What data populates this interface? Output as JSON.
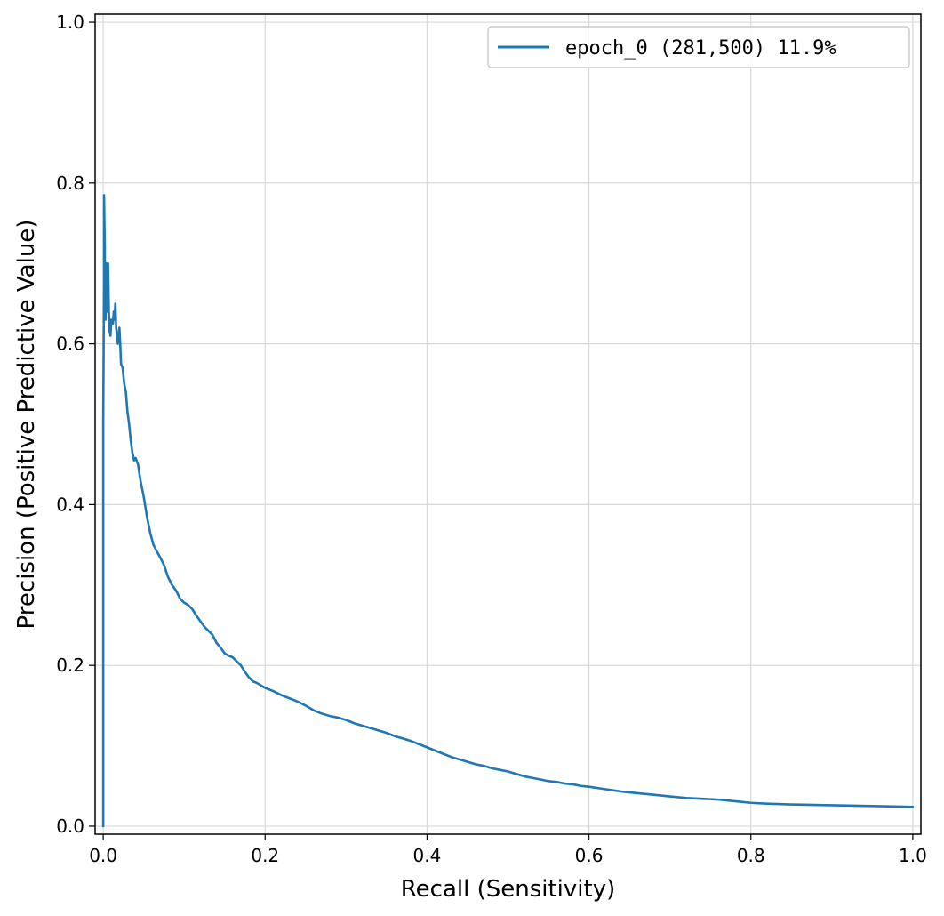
{
  "chart_data": {
    "type": "line",
    "title": "",
    "xlabel": "Recall (Sensitivity)",
    "ylabel": "Precision (Positive Predictive Value)",
    "xlim": [
      -0.01,
      1.01
    ],
    "ylim": [
      -0.01,
      1.01
    ],
    "x_ticks": [
      0.0,
      0.2,
      0.4,
      0.6,
      0.8,
      1.0
    ],
    "y_ticks": [
      0.0,
      0.2,
      0.4,
      0.6,
      0.8,
      1.0
    ],
    "x_tick_labels": [
      "0.0",
      "0.2",
      "0.4",
      "0.6",
      "0.8",
      "1.0"
    ],
    "y_tick_labels": [
      "0.0",
      "0.2",
      "0.4",
      "0.6",
      "0.8",
      "1.0"
    ],
    "grid": true,
    "legend_position": "top-right",
    "series": [
      {
        "name": "epoch_0 (281,500) 11.9%",
        "color": "#1f77b4",
        "points": [
          [
            0.0,
            0.0
          ],
          [
            0.0,
            0.5
          ],
          [
            0.001,
            0.68
          ],
          [
            0.001,
            0.785
          ],
          [
            0.002,
            0.72
          ],
          [
            0.002,
            0.65
          ],
          [
            0.003,
            0.63
          ],
          [
            0.004,
            0.7
          ],
          [
            0.005,
            0.64
          ],
          [
            0.006,
            0.7
          ],
          [
            0.007,
            0.64
          ],
          [
            0.008,
            0.615
          ],
          [
            0.009,
            0.61
          ],
          [
            0.01,
            0.63
          ],
          [
            0.012,
            0.625
          ],
          [
            0.013,
            0.64
          ],
          [
            0.014,
            0.63
          ],
          [
            0.015,
            0.65
          ],
          [
            0.016,
            0.62
          ],
          [
            0.018,
            0.6
          ],
          [
            0.02,
            0.62
          ],
          [
            0.021,
            0.6
          ],
          [
            0.022,
            0.575
          ],
          [
            0.024,
            0.57
          ],
          [
            0.026,
            0.55
          ],
          [
            0.028,
            0.54
          ],
          [
            0.03,
            0.515
          ],
          [
            0.032,
            0.5
          ],
          [
            0.034,
            0.48
          ],
          [
            0.036,
            0.465
          ],
          [
            0.038,
            0.455
          ],
          [
            0.04,
            0.458
          ],
          [
            0.043,
            0.45
          ],
          [
            0.046,
            0.43
          ],
          [
            0.05,
            0.41
          ],
          [
            0.054,
            0.385
          ],
          [
            0.058,
            0.365
          ],
          [
            0.062,
            0.35
          ],
          [
            0.066,
            0.342
          ],
          [
            0.07,
            0.335
          ],
          [
            0.075,
            0.325
          ],
          [
            0.08,
            0.31
          ],
          [
            0.085,
            0.3
          ],
          [
            0.09,
            0.293
          ],
          [
            0.095,
            0.283
          ],
          [
            0.1,
            0.278
          ],
          [
            0.105,
            0.275
          ],
          [
            0.11,
            0.27
          ],
          [
            0.115,
            0.262
          ],
          [
            0.12,
            0.255
          ],
          [
            0.125,
            0.248
          ],
          [
            0.13,
            0.243
          ],
          [
            0.135,
            0.238
          ],
          [
            0.14,
            0.228
          ],
          [
            0.145,
            0.222
          ],
          [
            0.15,
            0.215
          ],
          [
            0.155,
            0.212
          ],
          [
            0.16,
            0.21
          ],
          [
            0.165,
            0.205
          ],
          [
            0.17,
            0.2
          ],
          [
            0.175,
            0.192
          ],
          [
            0.18,
            0.185
          ],
          [
            0.185,
            0.18
          ],
          [
            0.19,
            0.178
          ],
          [
            0.2,
            0.172
          ],
          [
            0.21,
            0.168
          ],
          [
            0.22,
            0.163
          ],
          [
            0.23,
            0.159
          ],
          [
            0.24,
            0.155
          ],
          [
            0.25,
            0.15
          ],
          [
            0.26,
            0.144
          ],
          [
            0.27,
            0.14
          ],
          [
            0.28,
            0.137
          ],
          [
            0.29,
            0.135
          ],
          [
            0.3,
            0.132
          ],
          [
            0.31,
            0.128
          ],
          [
            0.32,
            0.125
          ],
          [
            0.33,
            0.122
          ],
          [
            0.34,
            0.119
          ],
          [
            0.35,
            0.116
          ],
          [
            0.36,
            0.112
          ],
          [
            0.37,
            0.109
          ],
          [
            0.38,
            0.106
          ],
          [
            0.39,
            0.102
          ],
          [
            0.4,
            0.098
          ],
          [
            0.41,
            0.094
          ],
          [
            0.42,
            0.09
          ],
          [
            0.43,
            0.086
          ],
          [
            0.44,
            0.083
          ],
          [
            0.45,
            0.08
          ],
          [
            0.46,
            0.077
          ],
          [
            0.47,
            0.075
          ],
          [
            0.48,
            0.072
          ],
          [
            0.49,
            0.07
          ],
          [
            0.5,
            0.068
          ],
          [
            0.51,
            0.065
          ],
          [
            0.52,
            0.062
          ],
          [
            0.53,
            0.06
          ],
          [
            0.54,
            0.058
          ],
          [
            0.55,
            0.056
          ],
          [
            0.56,
            0.055
          ],
          [
            0.57,
            0.053
          ],
          [
            0.58,
            0.052
          ],
          [
            0.59,
            0.05
          ],
          [
            0.6,
            0.049
          ],
          [
            0.62,
            0.046
          ],
          [
            0.64,
            0.043
          ],
          [
            0.66,
            0.041
          ],
          [
            0.68,
            0.039
          ],
          [
            0.7,
            0.037
          ],
          [
            0.72,
            0.035
          ],
          [
            0.74,
            0.034
          ],
          [
            0.76,
            0.033
          ],
          [
            0.78,
            0.031
          ],
          [
            0.8,
            0.029
          ],
          [
            0.82,
            0.028
          ],
          [
            0.85,
            0.027
          ],
          [
            0.9,
            0.026
          ],
          [
            0.95,
            0.025
          ],
          [
            1.0,
            0.024
          ]
        ]
      }
    ]
  },
  "colors": {
    "background": "#ffffff",
    "grid": "#d9d9d9",
    "axis": "#000000",
    "series": "#1f77b4",
    "legend_border": "#cccccc"
  }
}
